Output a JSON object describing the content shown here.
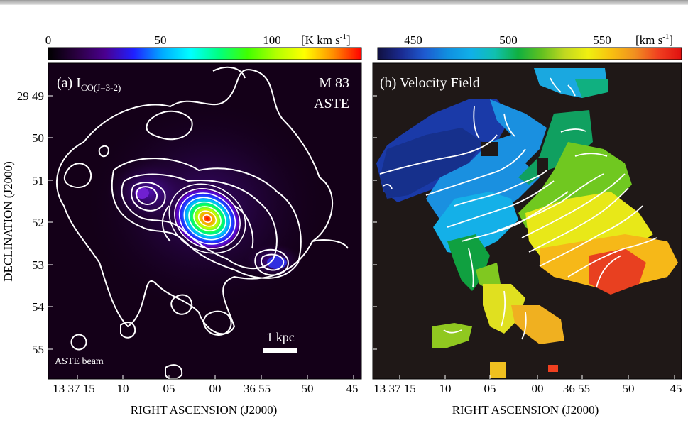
{
  "figure": {
    "panel_a": {
      "label": "(a) I",
      "label_sub": "CO(J=3-2)",
      "object_name": "M 83",
      "telescope": "ASTE",
      "beam_label": "ASTE beam",
      "scale_label": "1 kpc",
      "colorbar": {
        "ticks": [
          "0",
          "50",
          "100"
        ],
        "unit": "[K km s",
        "unit_sup": "-1",
        "unit_close": "]",
        "colors": [
          "#000000",
          "#2a0040",
          "#4a0090",
          "#2020ff",
          "#00aaff",
          "#00ffff",
          "#00ff80",
          "#40ff00",
          "#b0ff00",
          "#ffff00",
          "#ff9000",
          "#ff0000"
        ]
      },
      "dec_ticks": [
        "29 49",
        "50",
        "51",
        "52",
        "53",
        "54",
        "55"
      ],
      "ra_ticks": [
        "13 37 15",
        "10",
        "05",
        "00",
        "36 55",
        "50",
        "45"
      ]
    },
    "panel_b": {
      "label": "(b) Velocity Field",
      "colorbar": {
        "ticks": [
          "450",
          "500",
          "550"
        ],
        "unit": "[km s",
        "unit_sup": "-1",
        "unit_close": "]",
        "colors": [
          "#101040",
          "#1a2a90",
          "#1e5ad0",
          "#1090e0",
          "#10b0e8",
          "#10c0b0",
          "#10b040",
          "#60c020",
          "#c0d820",
          "#f0f010",
          "#f8c010",
          "#f09020",
          "#f04020",
          "#e01010"
        ]
      },
      "ra_ticks": [
        "13 37 15",
        "10",
        "05",
        "00",
        "36 55",
        "50",
        "45"
      ]
    },
    "y_axis_label": "DECLINATION (J2000)",
    "x_axis_label": "RIGHT ASCENSION (J2000)"
  }
}
